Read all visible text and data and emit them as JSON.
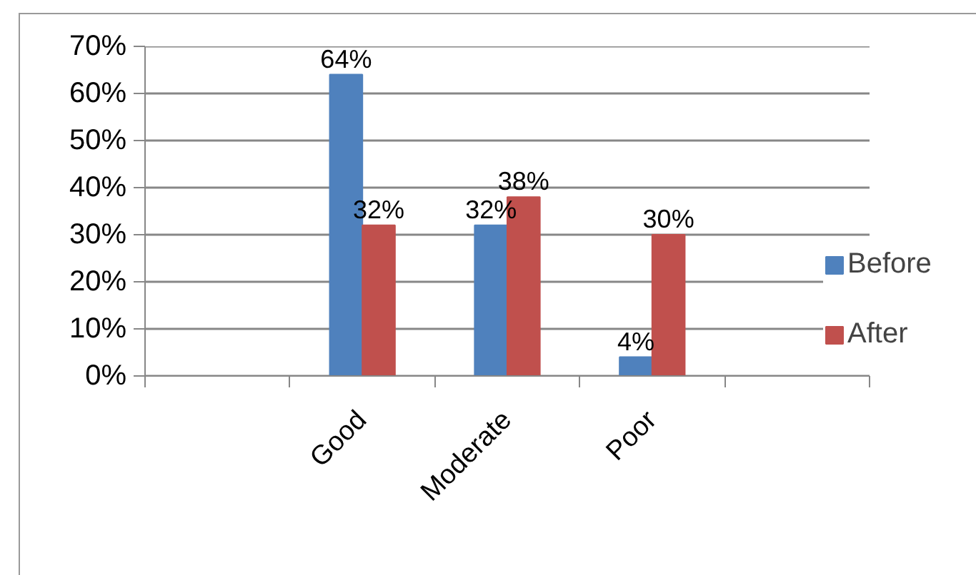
{
  "chart_data": {
    "type": "bar",
    "categories": [
      null,
      "Good",
      "Moderate",
      "Poor",
      null
    ],
    "series": [
      {
        "name": "Before",
        "color": "#4f81bd",
        "values": [
          null,
          64,
          32,
          4,
          null
        ],
        "value_labels": [
          null,
          "64%",
          "32%",
          "4%",
          null
        ]
      },
      {
        "name": "After",
        "color": "#c0504d",
        "values": [
          null,
          32,
          38,
          30,
          null
        ],
        "value_labels": [
          null,
          "32%",
          "38%",
          "30%",
          null
        ]
      }
    ],
    "ylim": [
      0,
      70
    ],
    "yticks": [
      {
        "value": 0,
        "label": "0%"
      },
      {
        "value": 10,
        "label": "10%"
      },
      {
        "value": 20,
        "label": "20%"
      },
      {
        "value": 30,
        "label": "30%"
      },
      {
        "value": 40,
        "label": "40%"
      },
      {
        "value": 50,
        "label": "50%"
      },
      {
        "value": 60,
        "label": "60%"
      },
      {
        "value": 70,
        "label": "70%"
      }
    ],
    "grid": "y",
    "legend": "right"
  }
}
